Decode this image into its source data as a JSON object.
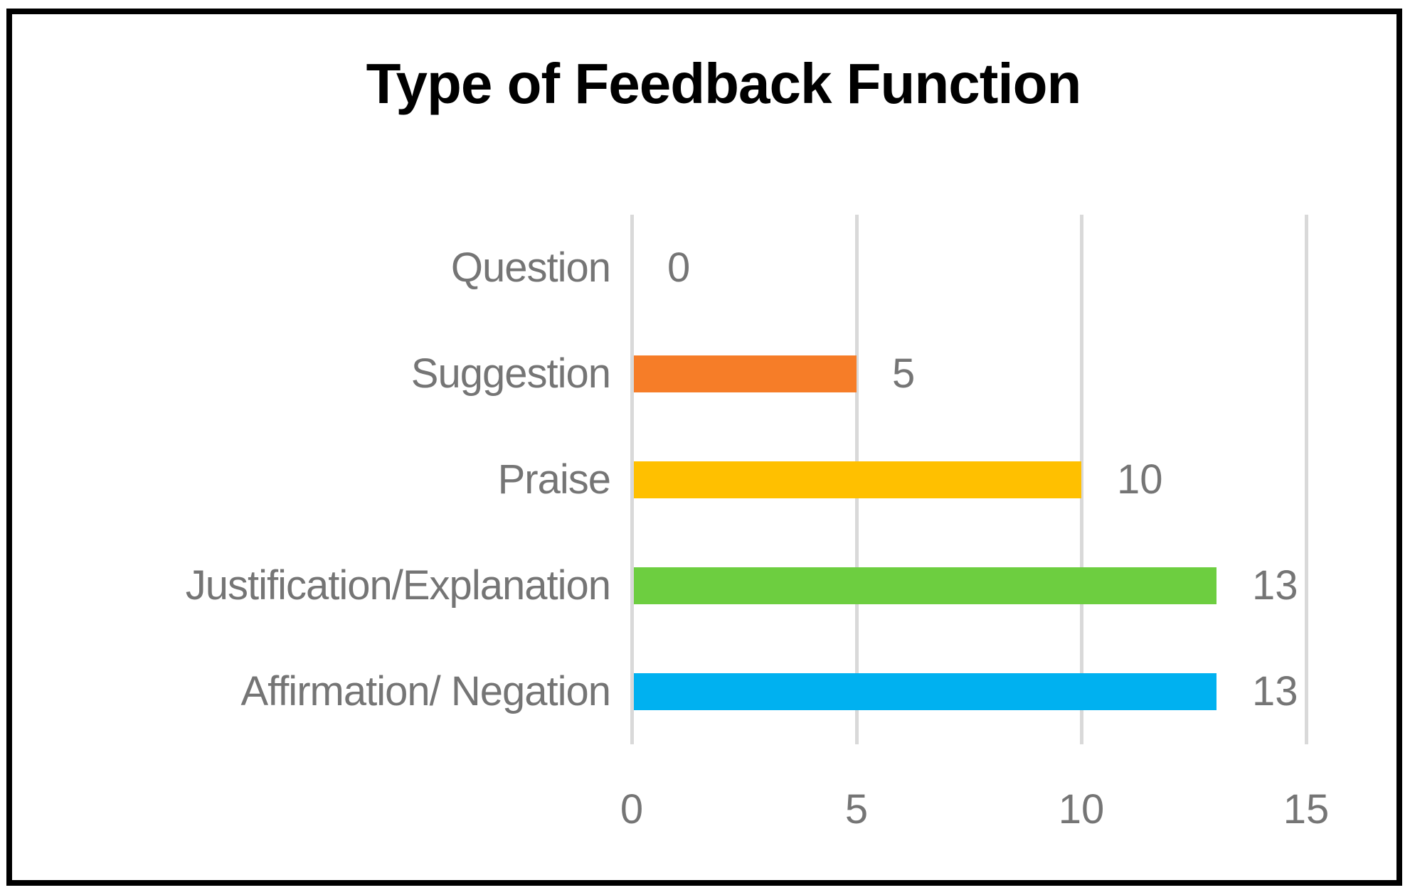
{
  "chart_data": {
    "type": "bar",
    "orientation": "horizontal",
    "title": "Type of Feedback Function",
    "categories": [
      "Question",
      "Suggestion",
      "Praise",
      "Justification/Explanation",
      "Affirmation/ Negation"
    ],
    "values": [
      0,
      5,
      10,
      13,
      13
    ],
    "data_labels": [
      "0",
      "5",
      "10",
      "13",
      "13"
    ],
    "bar_colors": [
      "none",
      "#F67D28",
      "#FFC000",
      "#6DCE40",
      "#00B1F0"
    ],
    "x_ticks": [
      "0",
      "5",
      "10",
      "15"
    ],
    "x_tick_values": [
      0,
      5,
      10,
      15
    ],
    "xlim": [
      0,
      15
    ],
    "grid": true,
    "legend": "none",
    "xlabel": "",
    "ylabel": ""
  },
  "colors": {
    "title_text": "#000000",
    "label_gray": "#757575",
    "gridline": "#D9D9D9",
    "frame_border": "#000000",
    "background": "#FFFFFF"
  }
}
